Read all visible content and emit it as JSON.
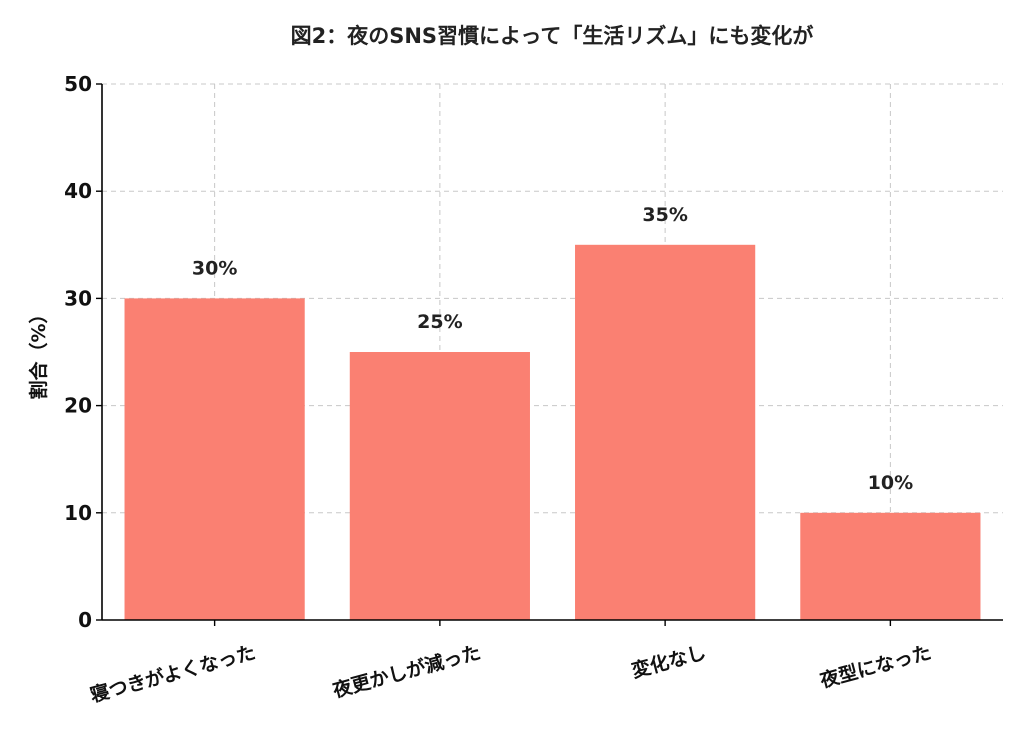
{
  "chart_data": {
    "type": "bar",
    "title": "図2：夜のSNS習慣によって「生活リズム」にも変化が",
    "xlabel": "",
    "ylabel": "割合（%）",
    "categories": [
      "寝つきがよくなった",
      "夜更かしが減った",
      "変化なし",
      "夜型になった"
    ],
    "values": [
      30,
      25,
      35,
      10
    ],
    "data_labels": [
      "30%",
      "25%",
      "35%",
      "10%"
    ],
    "ylim": [
      0,
      50
    ],
    "yticks": [
      "0",
      "10",
      "20",
      "30",
      "40",
      "50"
    ],
    "grid": true,
    "bar_color": "#FA8072"
  }
}
